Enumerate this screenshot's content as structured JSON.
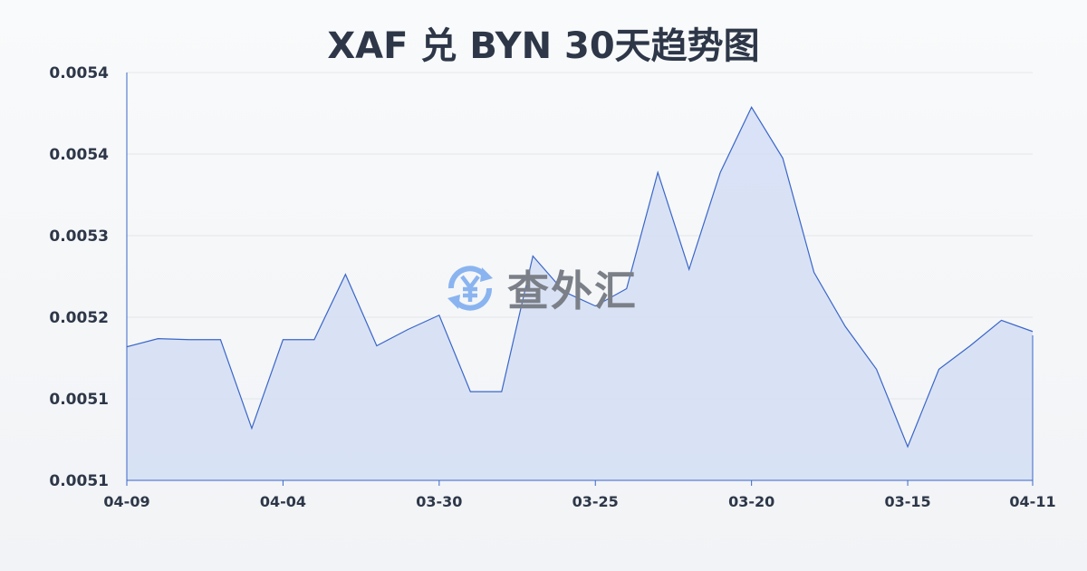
{
  "chart_data": {
    "type": "area",
    "title": "XAF 兑 BYN 30天趋势图",
    "xlabel": "",
    "ylabel": "",
    "ylim": [
      0.00505,
      0.00545
    ],
    "y_tick_values": [
      0.00545,
      0.00537,
      0.00529,
      0.00521,
      0.00513,
      0.00505
    ],
    "y_tick_labels": [
      "0.0054",
      "0.0054",
      "0.0053",
      "0.0052",
      "0.0051",
      "0.0051"
    ],
    "x_tick_labels": [
      "04-09",
      "04-04",
      "03-30",
      "03-25",
      "03-20",
      "03-15",
      "04-11"
    ],
    "x_tick_indices": [
      0,
      5,
      10,
      15,
      20,
      25,
      29
    ],
    "grid": true,
    "legend": "none",
    "values": [
      0.005181,
      0.005189,
      0.005188,
      0.005188,
      0.005101,
      0.005188,
      0.005188,
      0.005252,
      0.005182,
      0.005198,
      0.005212,
      0.005137,
      0.005137,
      0.00527,
      0.005235,
      0.005221,
      0.005238,
      0.005352,
      0.005257,
      0.005352,
      0.005416,
      0.005366,
      0.005254,
      0.005201,
      0.005159,
      0.005083,
      0.005159,
      0.005182,
      0.005207,
      0.005196
    ],
    "colors": {
      "line": "#3a66c8",
      "fill": "#d3def5",
      "grid": "#e3e6ea",
      "axis": "#3a66c8"
    }
  },
  "watermark": {
    "text": "查外汇",
    "icon": "yen-exchange-icon",
    "color": "#8ab4f0"
  }
}
